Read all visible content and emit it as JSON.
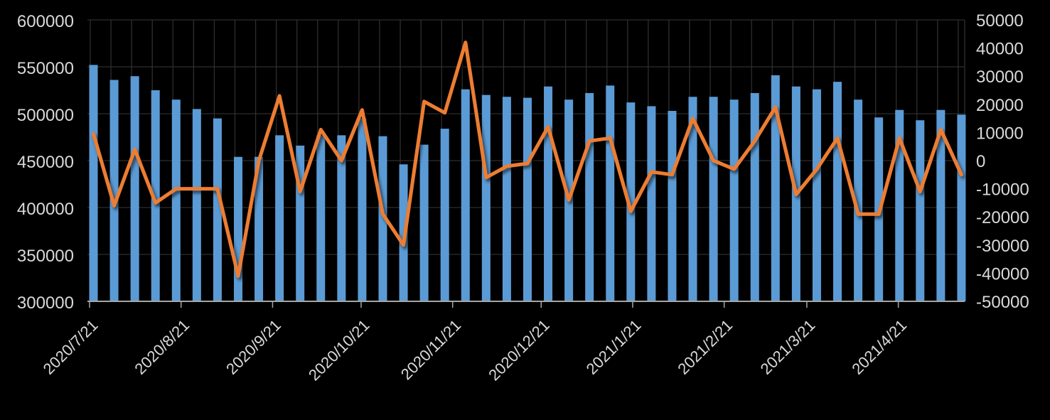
{
  "chart_data": {
    "type": "combo-bar-line",
    "title": "",
    "background_color": "#000000",
    "grid_on": true,
    "legend": "none",
    "bars": {
      "axis": "left",
      "color": "#5B9BD5",
      "values": [
        552000,
        536000,
        540000,
        525000,
        515000,
        505000,
        495000,
        454000,
        454000,
        477000,
        466000,
        477000,
        477000,
        495000,
        476000,
        446000,
        467000,
        484000,
        526000,
        520000,
        518000,
        517000,
        529000,
        515000,
        522000,
        530000,
        512000,
        508000,
        503000,
        518000,
        518000,
        515000,
        522000,
        541000,
        529000,
        526000,
        534000,
        515000,
        496000,
        504000,
        493000,
        504000,
        499000
      ]
    },
    "line": {
      "axis": "right",
      "color": "#ED7D31",
      "values": [
        9500,
        -16000,
        4000,
        -15000,
        -10000,
        -10000,
        -10000,
        -41000,
        0,
        23000,
        -11000,
        11000,
        0,
        18000,
        -19000,
        -30000,
        21000,
        17000,
        42000,
        -6000,
        -2000,
        -1000,
        12000,
        -14000,
        7000,
        8000,
        -18000,
        -4000,
        -5000,
        15000,
        0,
        -3000,
        7000,
        19000,
        -12000,
        -3000,
        8000,
        -19000,
        -19000,
        8000,
        -11000,
        11000,
        -5000
      ]
    },
    "y_left_axis": {
      "min": 300000,
      "max": 600000,
      "step": 50000,
      "tick_labels": [
        "600000",
        "550000",
        "500000",
        "450000",
        "400000",
        "350000",
        "300000"
      ]
    },
    "y_right_axis": {
      "min": -50000,
      "max": 50000,
      "step": 10000,
      "tick_labels": [
        "50000",
        "40000",
        "30000",
        "20000",
        "10000",
        "0",
        "-10000",
        "-20000",
        "-30000",
        "-40000",
        "-50000"
      ]
    },
    "x_axis": {
      "tick_labels": [
        "2020/7/21",
        "2020/8/21",
        "2020/9/21",
        "2020/10/21",
        "2020/11/21",
        "2020/12/21",
        "2021/1/21",
        "2021/2/21",
        "2021/3/21",
        "2021/4/21"
      ]
    },
    "colors": {
      "gridline": "#2e2e2e",
      "axis_line": "#a6a6a6",
      "label": "#d9d9d9"
    }
  }
}
